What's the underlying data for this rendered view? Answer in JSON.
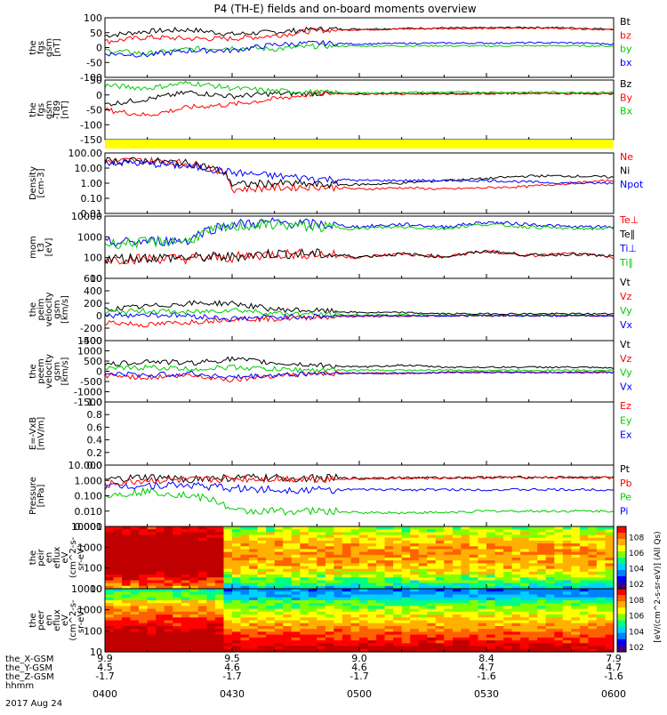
{
  "title": "P4 (TH-E) fields and on-board moments overview",
  "date": "2017 Aug 24",
  "ephemeris": {
    "row_labels": [
      "the_X-GSM",
      "the_Y-GSM",
      "the_Z-GSM",
      "hhmm"
    ],
    "columns": [
      {
        "x": "9.9",
        "y": "4.5",
        "z": "-1.7",
        "t": "0400"
      },
      {
        "x": "9.5",
        "y": "4.6",
        "z": "-1.7",
        "t": "0430"
      },
      {
        "x": "9.0",
        "y": "4.6",
        "z": "-1.7",
        "t": "0500"
      },
      {
        "x": "8.4",
        "y": "4.7",
        "z": "-1.6",
        "t": "0530"
      },
      {
        "x": "7.9",
        "y": "4.7",
        "z": "-1.6",
        "t": "0600"
      }
    ]
  },
  "colorbar": {
    "tick_base": "10",
    "ticks": [
      {
        "exp": "2",
        "frac": 0.0
      },
      {
        "exp": "4",
        "frac": 0.25
      },
      {
        "exp": "6",
        "frac": 0.5
      },
      {
        "exp": "8",
        "frac": 0.75
      },
      {
        "exp": "2",
        "frac": 0.0,
        "panel": 1
      },
      {
        "exp": "4",
        "frac": 0.25,
        "panel": 1
      },
      {
        "exp": "6",
        "frac": 0.5,
        "panel": 1
      },
      {
        "exp": "8",
        "frac": 0.75,
        "panel": 1
      }
    ],
    "label": "eV/(cm^2-s-sr-eV)",
    "label_full": "[eV/(cm^2-s-sr-eV)] (All Qs)"
  },
  "chart_data": [
    {
      "type": "line",
      "ylabel": [
        "the",
        "fgs",
        "gsm",
        "[nT]"
      ],
      "yticks": [
        "100",
        "50",
        "0",
        "-50",
        "-100"
      ],
      "ylim": [
        -100,
        100
      ],
      "series": [
        {
          "name": "Bt",
          "color": "#000000",
          "x": [
            0,
            10,
            20,
            30,
            40,
            50,
            60,
            70,
            80,
            90,
            100,
            110,
            120
          ],
          "y": [
            40,
            55,
            60,
            45,
            52,
            62,
            62,
            64,
            66,
            66,
            68,
            66,
            62
          ]
        },
        {
          "name": "bz",
          "color": "#ff0000",
          "x": [
            0,
            10,
            20,
            30,
            40,
            50,
            60,
            70,
            80,
            90,
            100,
            110,
            120
          ],
          "y": [
            20,
            35,
            30,
            30,
            40,
            58,
            60,
            62,
            64,
            64,
            66,
            64,
            60
          ]
        },
        {
          "name": "by",
          "color": "#00cc00",
          "x": [
            0,
            10,
            20,
            30,
            40,
            50,
            60,
            70,
            80,
            90,
            100,
            110,
            120
          ],
          "y": [
            -10,
            -20,
            -5,
            0,
            -5,
            5,
            5,
            6,
            6,
            5,
            6,
            6,
            5
          ]
        },
        {
          "name": "bx",
          "color": "#0000ff",
          "x": [
            0,
            10,
            20,
            30,
            40,
            50,
            60,
            70,
            80,
            90,
            100,
            110,
            120
          ],
          "y": [
            -20,
            -25,
            -10,
            -10,
            10,
            15,
            12,
            14,
            15,
            15,
            16,
            16,
            12
          ]
        }
      ]
    },
    {
      "type": "line",
      "ylabel": [
        "the",
        "fgs",
        "gsm",
        "-T89",
        "[nT]"
      ],
      "yticks": [
        "50",
        "0",
        "-50",
        "-100",
        "-150"
      ],
      "ylim": [
        -170,
        50
      ],
      "series": [
        {
          "name": "Bz",
          "color": "#000000",
          "x": [
            0,
            10,
            20,
            30,
            40,
            50,
            60,
            70,
            80,
            90,
            100,
            110,
            120
          ],
          "y": [
            -40,
            -20,
            5,
            -10,
            0,
            0,
            -2,
            2,
            0,
            0,
            2,
            0,
            0
          ]
        },
        {
          "name": "By",
          "color": "#ff0000",
          "x": [
            0,
            10,
            20,
            30,
            40,
            50,
            60,
            70,
            80,
            90,
            100,
            110,
            120
          ],
          "y": [
            -60,
            -80,
            -50,
            -40,
            -20,
            0,
            0,
            -2,
            0,
            0,
            0,
            0,
            0
          ]
        },
        {
          "name": "Bx",
          "color": "#00cc00",
          "x": [
            0,
            10,
            20,
            30,
            40,
            50,
            60,
            70,
            80,
            90,
            100,
            110,
            120
          ],
          "y": [
            30,
            20,
            40,
            20,
            10,
            5,
            2,
            4,
            5,
            5,
            5,
            5,
            5
          ]
        }
      ]
    },
    {
      "type": "line",
      "ylabel": [
        "Density",
        "[cm-3]"
      ],
      "yticks": [
        "100.00",
        "10.00",
        "1.00",
        "0.10",
        "0.01"
      ],
      "ylim": [
        0.01,
        100
      ],
      "yscale": "log",
      "series": [
        {
          "name": "Ne",
          "color": "#ff0000",
          "x": [
            0,
            10,
            20,
            30,
            40,
            50,
            60,
            70,
            80,
            90,
            100,
            110,
            120
          ],
          "y": [
            30,
            30,
            20,
            0.4,
            0.5,
            0.6,
            0.4,
            0.5,
            0.4,
            0.5,
            0.6,
            1.0,
            1.5
          ]
        },
        {
          "name": "Ni",
          "color": "#000000",
          "x": [
            0,
            10,
            20,
            30,
            40,
            50,
            60,
            70,
            80,
            90,
            100,
            110,
            120
          ],
          "y": [
            30,
            30,
            20,
            0.8,
            1.0,
            0.8,
            0.8,
            1.0,
            1.5,
            2.0,
            3.0,
            3.0,
            2.5
          ]
        },
        {
          "name": "Npot",
          "color": "#0000ff",
          "x": [
            0,
            10,
            20,
            30,
            40,
            50,
            60,
            70,
            80,
            90,
            100,
            110,
            120
          ],
          "y": [
            25,
            20,
            12,
            5,
            3,
            2,
            1.5,
            1.5,
            1.5,
            1.5,
            1.2,
            1.0,
            1.0
          ]
        }
      ]
    },
    {
      "type": "line",
      "ylabel": [
        "mom",
        "t3",
        "[eV]"
      ],
      "yticks": [
        "10000",
        "1000",
        "100",
        "10"
      ],
      "ylim": [
        10,
        10000
      ],
      "yscale": "log",
      "series": [
        {
          "name": "Te⊥",
          "color": "#ff0000",
          "x": [
            0,
            10,
            20,
            30,
            40,
            50,
            60,
            70,
            80,
            90,
            100,
            110,
            120
          ],
          "y": [
            80,
            90,
            90,
            100,
            150,
            150,
            100,
            150,
            100,
            200,
            120,
            150,
            100
          ]
        },
        {
          "name": "Te∥",
          "color": "#000000",
          "x": [
            0,
            10,
            20,
            30,
            40,
            50,
            60,
            70,
            80,
            90,
            100,
            110,
            120
          ],
          "y": [
            90,
            100,
            100,
            110,
            160,
            150,
            110,
            150,
            110,
            200,
            130,
            150,
            110
          ]
        },
        {
          "name": "Ti⊥",
          "color": "#0000ff",
          "x": [
            0,
            10,
            20,
            30,
            40,
            50,
            60,
            70,
            80,
            90,
            100,
            110,
            120
          ],
          "y": [
            500,
            600,
            700,
            4000,
            5000,
            4000,
            3000,
            4000,
            3000,
            5000,
            4000,
            3000,
            3000
          ]
        },
        {
          "name": "Ti∥",
          "color": "#00cc00",
          "x": [
            0,
            10,
            20,
            30,
            40,
            50,
            60,
            70,
            80,
            90,
            100,
            110,
            120
          ],
          "y": [
            450,
            550,
            650,
            3000,
            4000,
            3000,
            2500,
            3000,
            2500,
            4000,
            3000,
            2500,
            2500
          ]
        }
      ]
    },
    {
      "type": "line",
      "ylabel": [
        "the",
        "peim",
        "velocity",
        "gsm",
        "[km/s]"
      ],
      "yticks": [
        "600",
        "400",
        "200",
        "0",
        "-200",
        "-400"
      ],
      "ylim": [
        -400,
        600
      ],
      "series": [
        {
          "name": "Vt",
          "color": "#000000",
          "x": [
            0,
            10,
            20,
            30,
            40,
            50,
            60,
            70,
            80,
            90,
            100,
            110,
            120
          ],
          "y": [
            100,
            150,
            200,
            200,
            100,
            80,
            50,
            50,
            30,
            30,
            30,
            30,
            30
          ]
        },
        {
          "name": "Vz",
          "color": "#ff0000",
          "x": [
            0,
            10,
            20,
            30,
            40,
            50,
            60,
            70,
            80,
            90,
            100,
            110,
            120
          ],
          "y": [
            -100,
            -150,
            -100,
            -50,
            -50,
            -20,
            -10,
            -10,
            0,
            0,
            0,
            0,
            0
          ]
        },
        {
          "name": "Vy",
          "color": "#00cc00",
          "x": [
            0,
            10,
            20,
            30,
            40,
            50,
            60,
            70,
            80,
            90,
            100,
            110,
            120
          ],
          "y": [
            50,
            80,
            50,
            100,
            40,
            20,
            10,
            10,
            10,
            5,
            5,
            5,
            5
          ]
        },
        {
          "name": "Vx",
          "color": "#0000ff",
          "x": [
            0,
            10,
            20,
            30,
            40,
            50,
            60,
            70,
            80,
            90,
            100,
            110,
            120
          ],
          "y": [
            0,
            20,
            0,
            -50,
            -20,
            -10,
            0,
            0,
            0,
            0,
            0,
            0,
            0
          ]
        }
      ]
    },
    {
      "type": "line",
      "ylabel": [
        "the",
        "peem",
        "velocity",
        "gsm",
        "[km/s]"
      ],
      "yticks": [
        "1500",
        "1000",
        "500",
        "0",
        "-500",
        "-1000",
        "-1500"
      ],
      "ylim": [
        -1500,
        1500
      ],
      "series": [
        {
          "name": "Vt",
          "color": "#000000",
          "x": [
            0,
            10,
            20,
            30,
            40,
            50,
            60,
            70,
            80,
            90,
            100,
            110,
            120
          ],
          "y": [
            300,
            500,
            400,
            600,
            400,
            300,
            200,
            300,
            200,
            200,
            200,
            200,
            150
          ]
        },
        {
          "name": "Vz",
          "color": "#ff0000",
          "x": [
            0,
            10,
            20,
            30,
            40,
            50,
            60,
            70,
            80,
            90,
            100,
            110,
            120
          ],
          "y": [
            -200,
            -300,
            -200,
            -400,
            -200,
            -100,
            -100,
            -100,
            -50,
            -50,
            -50,
            -50,
            -50
          ]
        },
        {
          "name": "Vy",
          "color": "#00cc00",
          "x": [
            0,
            10,
            20,
            30,
            40,
            50,
            60,
            70,
            80,
            90,
            100,
            110,
            120
          ],
          "y": [
            100,
            200,
            100,
            200,
            100,
            50,
            50,
            50,
            50,
            50,
            50,
            50,
            50
          ]
        },
        {
          "name": "Vx",
          "color": "#0000ff",
          "x": [
            0,
            10,
            20,
            30,
            40,
            50,
            60,
            70,
            80,
            90,
            100,
            110,
            120
          ],
          "y": [
            -100,
            -200,
            -100,
            -300,
            -200,
            -100,
            -100,
            -100,
            -50,
            -50,
            -50,
            -50,
            -50
          ]
        }
      ]
    },
    {
      "type": "line",
      "ylabel": [
        "E=-VxB",
        "[mV/m]"
      ],
      "yticks": [
        "1.0",
        "0.8",
        "0.6",
        "0.4",
        "0.2",
        "0.0"
      ],
      "ylim": [
        0,
        1
      ],
      "series": [
        {
          "name": "Ez",
          "color": "#ff0000",
          "x": [],
          "y": []
        },
        {
          "name": "Ey",
          "color": "#00cc00",
          "x": [],
          "y": []
        },
        {
          "name": "Ex",
          "color": "#0000ff",
          "x": [],
          "y": []
        }
      ]
    },
    {
      "type": "line",
      "ylabel": [
        "Pressure",
        "[nPa]"
      ],
      "yticks": [
        "10.000",
        "1.000",
        "0.100",
        "0.010",
        "0.001"
      ],
      "ylim": [
        0.001,
        10
      ],
      "yscale": "log",
      "series": [
        {
          "name": "Pt",
          "color": "#000000",
          "x": [
            0,
            10,
            20,
            30,
            40,
            50,
            60,
            70,
            80,
            90,
            100,
            110,
            120
          ],
          "y": [
            1.0,
            1.5,
            1.2,
            1.5,
            1.4,
            1.4,
            1.4,
            1.5,
            1.5,
            1.6,
            1.6,
            1.6,
            1.6
          ]
        },
        {
          "name": "Pb",
          "color": "#ff0000",
          "x": [
            0,
            10,
            20,
            30,
            40,
            50,
            60,
            70,
            80,
            90,
            100,
            110,
            120
          ],
          "y": [
            0.5,
            1.0,
            1.0,
            1.3,
            1.3,
            1.3,
            1.3,
            1.4,
            1.4,
            1.5,
            1.5,
            1.5,
            1.5
          ]
        },
        {
          "name": "Pe",
          "color": "#00cc00",
          "x": [
            0,
            10,
            20,
            30,
            40,
            50,
            60,
            70,
            80,
            90,
            100,
            110,
            120
          ],
          "y": [
            0.1,
            0.2,
            0.1,
            0.01,
            0.01,
            0.01,
            0.008,
            0.008,
            0.008,
            0.01,
            0.01,
            0.01,
            0.01
          ]
        },
        {
          "name": "Pi",
          "color": "#0000ff",
          "x": [
            0,
            10,
            20,
            30,
            40,
            50,
            60,
            70,
            80,
            90,
            100,
            110,
            120
          ],
          "y": [
            0.4,
            0.5,
            0.5,
            0.3,
            0.25,
            0.25,
            0.25,
            0.25,
            0.25,
            0.25,
            0.25,
            0.25,
            0.25
          ]
        }
      ]
    },
    {
      "type": "heatmap",
      "ylabel": [
        "the",
        "peir",
        "en",
        "eflux",
        "eV",
        "(cm^2-s-",
        "sr-eV)"
      ],
      "yticks": [
        "10000",
        "1000",
        "100",
        "10"
      ],
      "ylim": [
        5,
        25000
      ],
      "yscale": "log",
      "colorscale": "log flux"
    },
    {
      "type": "heatmap",
      "ylabel": [
        "the",
        "peer",
        "en",
        "eflux",
        "eV",
        "(cm^2-s-",
        "sr-eV)"
      ],
      "yticks": [
        "10000",
        "1000",
        "100",
        "10"
      ],
      "ylim": [
        5,
        25000
      ],
      "yscale": "log",
      "colorscale": "log flux"
    }
  ],
  "xaxis": {
    "minutes_span": 120
  }
}
